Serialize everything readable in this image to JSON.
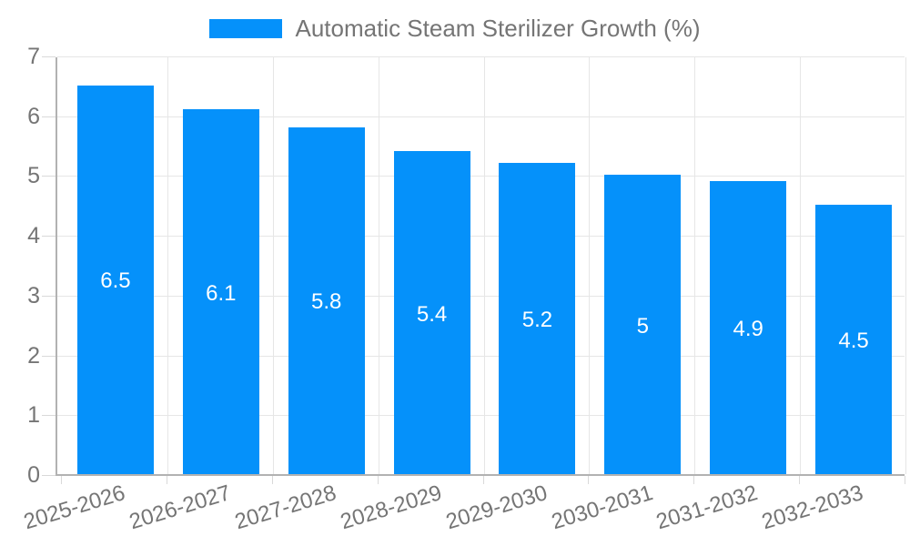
{
  "chart_data": {
    "type": "bar",
    "title": "Automatic Steam Sterilizer Growth (%)",
    "categories": [
      "2025-2026",
      "2026-2027",
      "2027-2028",
      "2028-2029",
      "2029-2030",
      "2030-2031",
      "2031-2032",
      "2032-2033"
    ],
    "values": [
      6.5,
      6.1,
      5.8,
      5.4,
      5.2,
      5,
      4.9,
      4.5
    ],
    "xlabel": "",
    "ylabel": "",
    "ylim": [
      0,
      7
    ],
    "yticks": [
      0,
      1,
      2,
      3,
      4,
      5,
      6,
      7
    ],
    "grid": true,
    "legend_position": "top",
    "x_label_rotation_deg": -17,
    "colors": {
      "bar": "#0591fa",
      "grid": "#e6e6e6",
      "axis": "#b2b2b2",
      "tick": "#d9d9d9",
      "text": "#757575",
      "value_label": "#ffffff",
      "background": "#ffffff"
    }
  }
}
